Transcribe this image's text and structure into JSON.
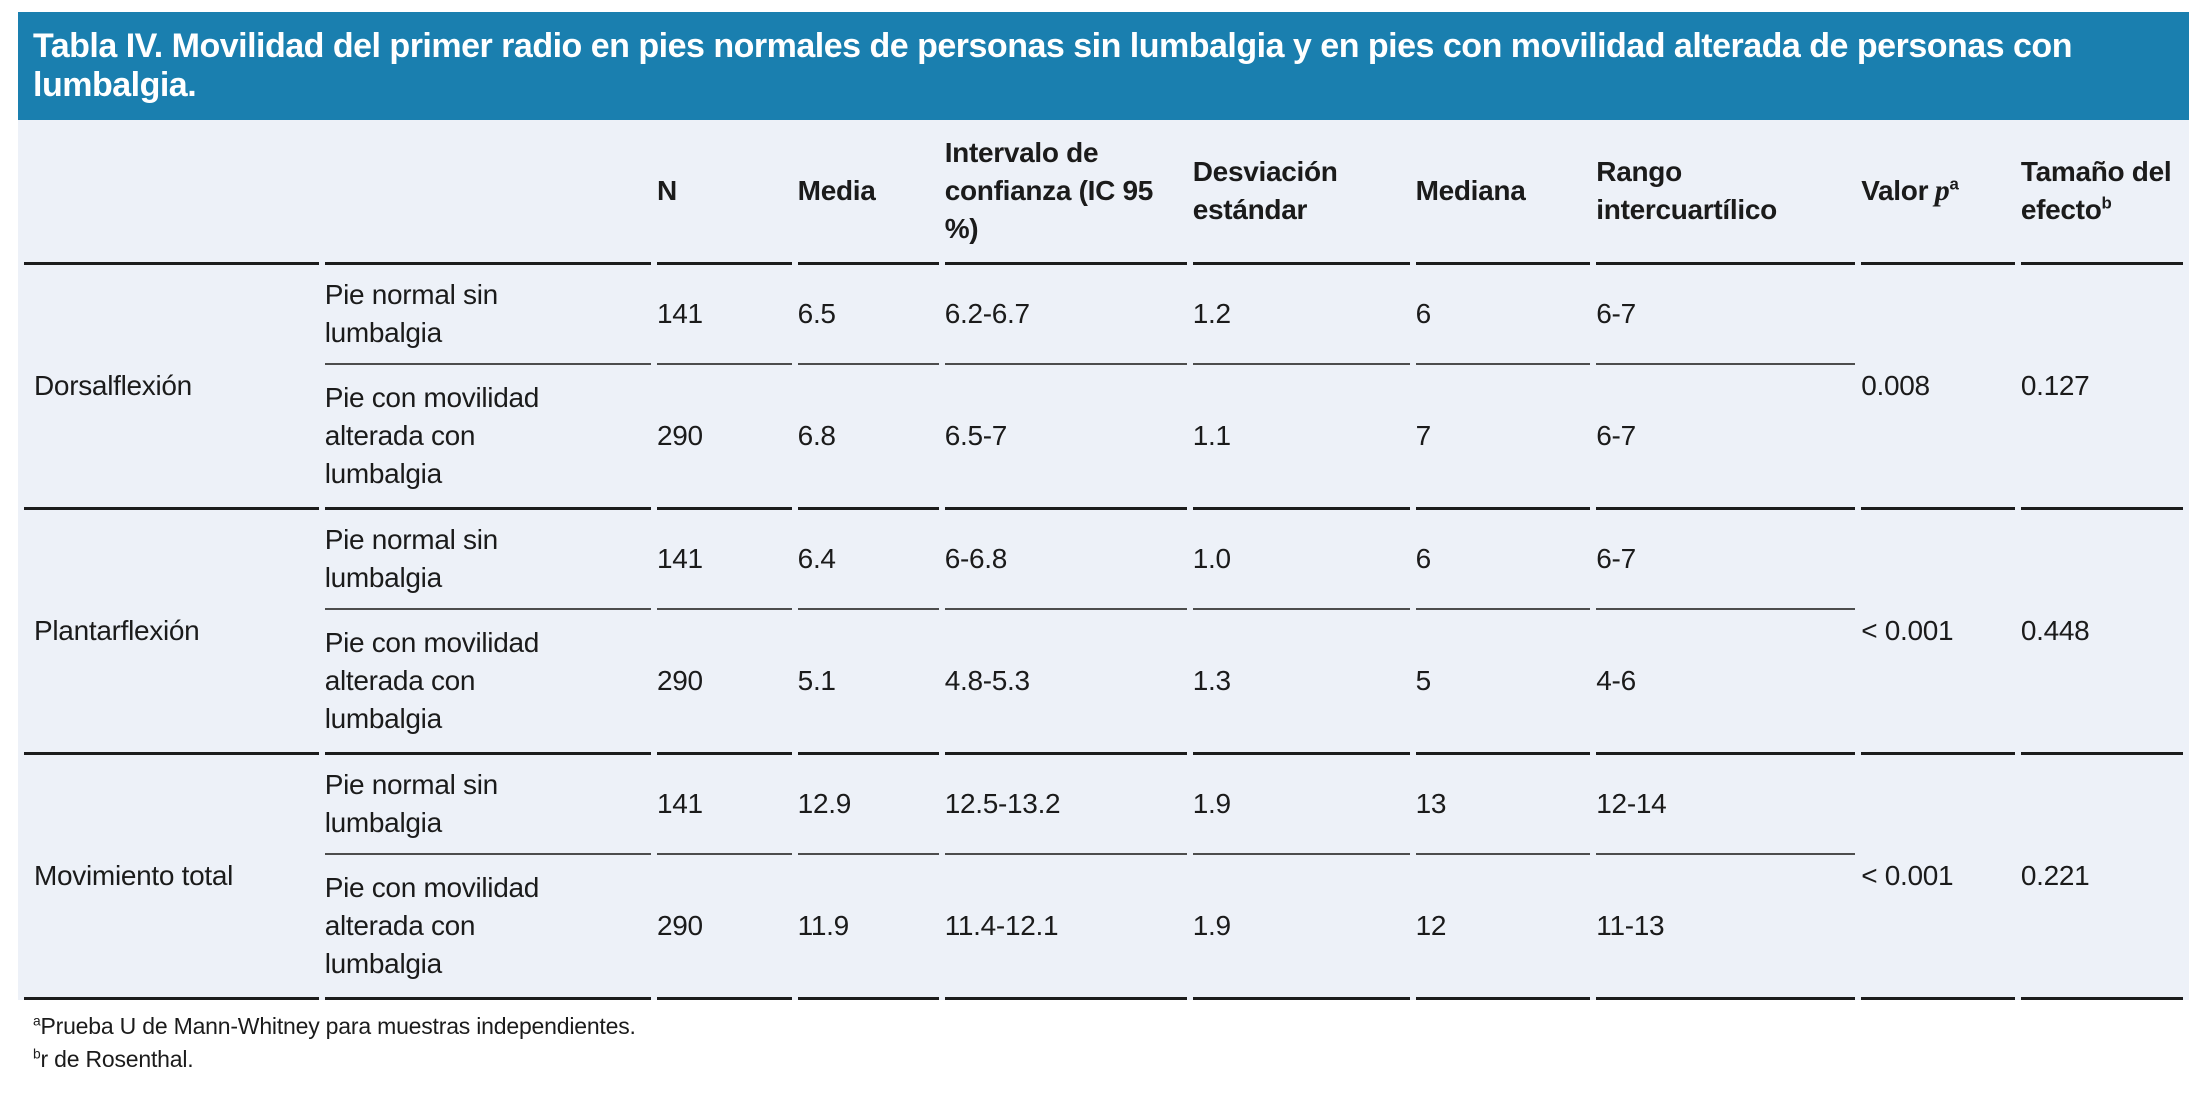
{
  "title": "Tabla IV. Movilidad del primer radio en pies normales de personas sin lumbalgia y en pies con movilidad alterada de personas con lumbalgia.",
  "columns": {
    "n": "N",
    "media": "Media",
    "ic": "Intervalo de confianza (IC 95 %)",
    "de": "Desviación estándar",
    "mediana": "Mediana",
    "rango": "Rango intercuartílico",
    "valor_prefix": "Valor",
    "valor_var": "p",
    "valor_sup": "a",
    "tamano": "Tamaño del efecto",
    "tamano_sup": "b"
  },
  "sections": [
    {
      "label": "Dorsalflexión",
      "rows": [
        {
          "group": "Pie normal sin lumbalgia",
          "n": "141",
          "media": "6.5",
          "ic": "6.2-6.7",
          "de": "1.2",
          "mediana": "6",
          "rango": "6-7"
        },
        {
          "group": "Pie con movilidad alterada con lumbalgia",
          "n": "290",
          "media": "6.8",
          "ic": "6.5-7",
          "de": "1.1",
          "mediana": "7",
          "rango": "6-7"
        }
      ],
      "valor_p": "0.008",
      "tamano_efecto": "0.127"
    },
    {
      "label": "Plantarflexión",
      "rows": [
        {
          "group": "Pie normal sin lumbalgia",
          "n": "141",
          "media": "6.4",
          "ic": "6-6.8",
          "de": "1.0",
          "mediana": "6",
          "rango": "6-7"
        },
        {
          "group": "Pie con movilidad alterada con lumbalgia",
          "n": "290",
          "media": "5.1",
          "ic": "4.8-5.3",
          "de": "1.3",
          "mediana": "5",
          "rango": "4-6"
        }
      ],
      "valor_p": "< 0.001",
      "tamano_efecto": "0.448"
    },
    {
      "label": "Movimiento total",
      "rows": [
        {
          "group": "Pie normal sin lumbalgia",
          "n": "141",
          "media": "12.9",
          "ic": "12.5-13.2",
          "de": "1.9",
          "mediana": "13",
          "rango": "12-14"
        },
        {
          "group": "Pie con movilidad alterada con lumbalgia",
          "n": "290",
          "media": "11.9",
          "ic": "11.4-12.1",
          "de": "1.9",
          "mediana": "12",
          "rango": "11-13"
        }
      ],
      "valor_p": "< 0.001",
      "tamano_efecto": "0.221"
    }
  ],
  "footnotes": [
    {
      "sup": "a",
      "text": "Prueba U de Mann-Whitney para muestras independientes."
    },
    {
      "sup": "b",
      "text": "r de Rosenthal."
    }
  ],
  "colors": {
    "accent_blue": "#1A7FAF",
    "table_bg": "#EDF1F8",
    "border_dark": "#1C1C1C",
    "border_light": "#4D4D4D",
    "text": "#1B1B1B",
    "title_text": "#FFFFFF"
  }
}
